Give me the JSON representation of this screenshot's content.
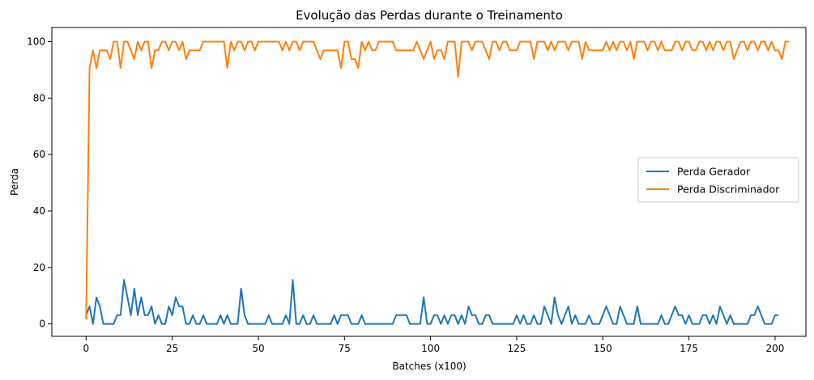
{
  "chart_data": {
    "type": "line",
    "title": "Evolução das Perdas durante o Treinamento",
    "xlabel": "Batches (x100)",
    "ylabel": "Perda",
    "xlim": [
      -9.95,
      208.95
    ],
    "ylim": [
      -4.4,
      105.0
    ],
    "xticks": [
      0,
      25,
      50,
      75,
      100,
      125,
      150,
      175,
      200
    ],
    "yticks": [
      0,
      20,
      40,
      60,
      80,
      100
    ],
    "grid": false,
    "legend_position": "center-right",
    "series": [
      {
        "name": "Perda Gerador",
        "color": "#1f77b4",
        "values": [
          3.1,
          6.2,
          0,
          9.4,
          6.2,
          0,
          0,
          0,
          0,
          3.1,
          3.1,
          15.6,
          9.4,
          3.1,
          12.5,
          3.1,
          9.4,
          3.1,
          3.1,
          6.2,
          0,
          3.1,
          0,
          0,
          6.2,
          3.1,
          9.4,
          6.2,
          6.2,
          0,
          0,
          3.1,
          0,
          0,
          3.1,
          0,
          0,
          0,
          0,
          3.1,
          0,
          3.1,
          0,
          0,
          0,
          12.5,
          3.1,
          0,
          0,
          0,
          0,
          0,
          0,
          3.1,
          0,
          0,
          0,
          0,
          3.1,
          0,
          15.6,
          0,
          0,
          3.1,
          0,
          0,
          3.1,
          0,
          0,
          0,
          0,
          0,
          3.1,
          0,
          3.1,
          3.1,
          3.1,
          0,
          0,
          0,
          3.1,
          0,
          0,
          0,
          0,
          0,
          0,
          0,
          0,
          0,
          3.1,
          3.1,
          3.1,
          3.1,
          0,
          0,
          0,
          0,
          9.4,
          0,
          0,
          3.1,
          3.1,
          0,
          3.1,
          0,
          3.1,
          3.1,
          0,
          3.1,
          0,
          6.2,
          3.1,
          3.1,
          0,
          0,
          3.1,
          3.1,
          0,
          0,
          0,
          0,
          0,
          0,
          0,
          3.1,
          0,
          3.1,
          0,
          0,
          3.1,
          0,
          0,
          6.2,
          3.1,
          0,
          9.4,
          3.1,
          0,
          3.1,
          6.2,
          0,
          3.1,
          0,
          0,
          0,
          3.1,
          0,
          0,
          0,
          3.1,
          6.2,
          3.1,
          0,
          0,
          6.2,
          3.1,
          0,
          0,
          0,
          6.2,
          0,
          0,
          0,
          0,
          0,
          0,
          3.1,
          0,
          0,
          3.1,
          6.2,
          3.1,
          3.1,
          0,
          3.1,
          0,
          0,
          0,
          3.1,
          3.1,
          0,
          3.1,
          0,
          6.2,
          3.1,
          0,
          3.1,
          0,
          0,
          0,
          0,
          0,
          3.1,
          3.1,
          6.2,
          3.1,
          0,
          0,
          0,
          3.1,
          3.1
        ]
      },
      {
        "name": "Perda Discriminador",
        "color": "#ff7f0e",
        "values": [
          1.6,
          90.6,
          96.9,
          90.6,
          96.9,
          96.9,
          96.9,
          93.8,
          100,
          100,
          90.6,
          100,
          100,
          96.9,
          93.8,
          100,
          96.9,
          100,
          100,
          90.6,
          96.9,
          96.9,
          100,
          100,
          96.9,
          100,
          100,
          96.9,
          100,
          93.8,
          96.9,
          96.9,
          96.9,
          96.9,
          100,
          100,
          100,
          100,
          100,
          100,
          100,
          90.6,
          100,
          96.9,
          100,
          100,
          96.9,
          100,
          100,
          96.9,
          100,
          100,
          100,
          100,
          100,
          100,
          100,
          96.9,
          100,
          96.9,
          100,
          100,
          96.9,
          100,
          100,
          100,
          100,
          96.9,
          93.8,
          96.9,
          96.9,
          96.9,
          96.9,
          96.9,
          90.6,
          100,
          100,
          93.8,
          93.8,
          90.6,
          100,
          96.9,
          100,
          96.9,
          96.9,
          100,
          100,
          100,
          100,
          100,
          96.9,
          96.9,
          96.9,
          96.9,
          96.9,
          96.9,
          100,
          96.9,
          93.8,
          96.9,
          100,
          93.8,
          96.9,
          96.9,
          93.8,
          100,
          100,
          100,
          87.5,
          100,
          100,
          100,
          96.9,
          100,
          100,
          100,
          96.9,
          93.8,
          100,
          100,
          96.9,
          100,
          100,
          96.9,
          96.9,
          96.9,
          100,
          100,
          100,
          100,
          93.8,
          100,
          100,
          100,
          96.9,
          100,
          96.9,
          100,
          100,
          100,
          96.9,
          100,
          100,
          100,
          93.8,
          100,
          96.9,
          96.9,
          96.9,
          96.9,
          96.9,
          100,
          96.9,
          100,
          96.9,
          100,
          100,
          96.9,
          100,
          93.8,
          100,
          100,
          100,
          96.9,
          100,
          100,
          96.9,
          100,
          96.9,
          96.9,
          96.9,
          100,
          100,
          96.9,
          100,
          100,
          96.9,
          96.9,
          100,
          100,
          96.9,
          100,
          96.9,
          100,
          100,
          96.9,
          100,
          100,
          93.8,
          96.9,
          100,
          100,
          96.9,
          100,
          100,
          96.9,
          100,
          100,
          96.9,
          100,
          96.9,
          96.9,
          93.8,
          100,
          100
        ]
      }
    ]
  }
}
